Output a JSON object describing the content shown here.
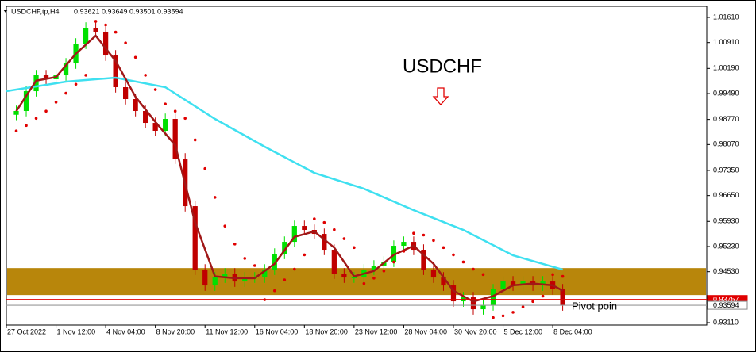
{
  "chart_data": {
    "type": "candlestick",
    "header": {
      "symbol": "USDCHF,tp,H4",
      "ohlc": [
        0.93621,
        0.93649,
        0.93501,
        0.93594
      ]
    },
    "title": "USDCHF",
    "xlim": [
      -1,
      69.5
    ],
    "ylim": [
      0.93044,
      1.01919
    ],
    "xticks": [
      {
        "value": -1,
        "label": "27 Oct 2022"
      },
      {
        "value": 4,
        "label": "1 Nov 12:00"
      },
      {
        "value": 9,
        "label": "4 Nov 04:00"
      },
      {
        "value": 14,
        "label": "8 Nov 20:00"
      },
      {
        "value": 19,
        "label": "11 Nov 12:00"
      },
      {
        "value": 24,
        "label": "16 Nov 04:00"
      },
      {
        "value": 29,
        "label": "18 Nov 20:00"
      },
      {
        "value": 34,
        "label": "23 Nov 12:00"
      },
      {
        "value": 39,
        "label": "28 Nov 04:00"
      },
      {
        "value": 44,
        "label": "30 Nov 20:00"
      },
      {
        "value": 49,
        "label": "5 Dec 12:00"
      },
      {
        "value": 54,
        "label": "8 Dec 04:00"
      }
    ],
    "yticks": [
      {
        "value": 1.0161,
        "label": "1.01610"
      },
      {
        "value": 1.0091,
        "label": "1.00910"
      },
      {
        "value": 1.0019,
        "label": "1.00190"
      },
      {
        "value": 0.9949,
        "label": "0.99490"
      },
      {
        "value": 0.9877,
        "label": "0.98770"
      },
      {
        "value": 0.9807,
        "label": "0.98070"
      },
      {
        "value": 0.9735,
        "label": "0.97350"
      },
      {
        "value": 0.9665,
        "label": "0.96650"
      },
      {
        "value": 0.9593,
        "label": "0.95930"
      },
      {
        "value": 0.9523,
        "label": "0.95230"
      },
      {
        "value": 0.9453,
        "label": "0.94530"
      },
      {
        "value": 0.9311,
        "label": "0.93110"
      }
    ],
    "up_color": "#00e000",
    "down_color": "#c00000",
    "candles": {
      "open": [
        0.989,
        0.99005,
        0.99556,
        0.99998,
        0.99888,
        0.99998,
        1.00329,
        1.00881,
        1.01323,
        1.01213,
        1.0055,
        0.99667,
        0.99336,
        0.99005,
        0.98673,
        0.98453,
        0.98784,
        0.9768,
        0.96355,
        0.94588,
        0.94147,
        0.94368,
        0.94478,
        0.94257,
        0.94368,
        0.94368,
        0.94588,
        0.9503,
        0.95361,
        0.95803,
        0.95693,
        0.95582,
        0.95141,
        0.94478,
        0.94368,
        0.94368,
        0.94588,
        0.94699,
        0.94809,
        0.95251,
        0.95361,
        0.95141,
        0.94588,
        0.94368,
        0.94147,
        0.93705,
        0.93816,
        0.93484,
        0.93595,
        0.94037,
        0.94257,
        0.94147,
        0.94257,
        0.94147,
        0.94257,
        0.94037
      ],
      "high": [
        0.99155,
        0.99706,
        1.00148,
        1.00148,
        1.00148,
        1.00479,
        1.01031,
        1.01473,
        1.01473,
        1.01363,
        1.007,
        0.99817,
        0.99486,
        0.99155,
        0.98823,
        0.98934,
        0.98934,
        0.9783,
        0.96505,
        0.94738,
        0.94518,
        0.94628,
        0.94628,
        0.94518,
        0.94518,
        0.94738,
        0.9518,
        0.95511,
        0.95953,
        0.95953,
        0.95843,
        0.95732,
        0.95291,
        0.94628,
        0.94518,
        0.94738,
        0.94849,
        0.94959,
        0.95401,
        0.95511,
        0.95511,
        0.95291,
        0.94738,
        0.94518,
        0.94297,
        0.93966,
        0.93966,
        0.93745,
        0.94187,
        0.94407,
        0.94407,
        0.94407,
        0.94407,
        0.94407,
        0.94407,
        0.94187
      ],
      "low": [
        0.9875,
        0.98855,
        0.99406,
        0.99738,
        0.99738,
        0.99848,
        1.00179,
        1.00731,
        1.01063,
        1.004,
        0.99517,
        0.99186,
        0.98855,
        0.98523,
        0.98303,
        0.98303,
        0.9753,
        0.96205,
        0.94438,
        0.93997,
        0.93997,
        0.94218,
        0.94107,
        0.94107,
        0.94218,
        0.94218,
        0.94438,
        0.9488,
        0.95211,
        0.95543,
        0.95432,
        0.94991,
        0.94328,
        0.94218,
        0.94218,
        0.94218,
        0.94438,
        0.94549,
        0.94659,
        0.95101,
        0.94991,
        0.94438,
        0.94218,
        0.93997,
        0.93555,
        0.93555,
        0.93334,
        0.93334,
        0.93445,
        0.93887,
        0.93997,
        0.93997,
        0.93997,
        0.93997,
        0.93887,
        0.93444
      ],
      "close": [
        0.99005,
        0.99556,
        0.99998,
        0.99888,
        0.99998,
        1.00329,
        1.00881,
        1.01323,
        1.01213,
        1.0055,
        0.99667,
        0.99336,
        0.99005,
        0.98673,
        0.98453,
        0.98784,
        0.9768,
        0.96355,
        0.94588,
        0.94147,
        0.94368,
        0.94478,
        0.94257,
        0.94368,
        0.94368,
        0.94588,
        0.9503,
        0.95361,
        0.95803,
        0.95693,
        0.95582,
        0.95141,
        0.94478,
        0.94368,
        0.94368,
        0.94588,
        0.94699,
        0.94809,
        0.95251,
        0.95361,
        0.95141,
        0.94588,
        0.94368,
        0.94147,
        0.93705,
        0.93816,
        0.93484,
        0.93595,
        0.94037,
        0.94257,
        0.94147,
        0.94257,
        0.94147,
        0.94257,
        0.94037,
        0.93594
      ]
    },
    "lines": [
      {
        "color": "#3fe0f0",
        "x": [
          -1,
          5,
          10,
          15,
          20,
          25,
          30,
          35,
          40,
          45,
          50,
          55
        ],
        "values": [
          0.99556,
          0.99822,
          0.99932,
          0.99667,
          0.98784,
          0.98011,
          0.97282,
          0.9684,
          0.96244,
          0.95692,
          0.94986,
          0.94588
        ]
      },
      {
        "color": "#a01818",
        "x": [
          0,
          2,
          4,
          6,
          8,
          10,
          12,
          14,
          16,
          18,
          20,
          22,
          24,
          26,
          28,
          30,
          32,
          34,
          36,
          38,
          40,
          42,
          44,
          46,
          48,
          50,
          52,
          54,
          55
        ],
        "values": [
          0.99,
          0.9985,
          0.9995,
          1.006,
          1.011,
          1.004,
          0.994,
          0.987,
          0.9805,
          0.959,
          0.944,
          0.9435,
          0.9435,
          0.9475,
          0.955,
          0.9565,
          0.952,
          0.944,
          0.9455,
          0.95,
          0.9525,
          0.9475,
          0.94,
          0.937,
          0.9385,
          0.9415,
          0.942,
          0.9415,
          0.94
        ]
      }
    ],
    "dots": {
      "color": "#e00000",
      "values": [
        0.9845,
        0.986,
        0.988,
        0.99,
        0.9925,
        0.995,
        0.9975,
        1.0,
        1.015,
        1.014,
        1.012,
        1.009,
        1.005,
        1.0,
        0.996,
        0.992,
        0.99,
        0.988,
        0.982,
        0.974,
        0.966,
        0.958,
        0.953,
        0.949,
        0.947,
        0.9375,
        0.94,
        0.943,
        0.946,
        0.95,
        0.96,
        0.959,
        0.957,
        0.9545,
        0.952,
        0.942,
        0.9435,
        0.9455,
        0.948,
        0.951,
        0.956,
        0.9555,
        0.954,
        0.952,
        0.95,
        0.948,
        0.946,
        0.9445,
        0.9325,
        0.933,
        0.934,
        0.9355,
        0.937,
        0.9385,
        0.9445,
        0.944
      ]
    },
    "zone": {
      "color": "#b8860b",
      "from": 0.9388,
      "to": 0.9463
    },
    "levels": [
      {
        "value": 0.93757,
        "color": "#e00000"
      },
      {
        "value": 0.93594,
        "color": "#999999",
        "label": "Pivot poin"
      }
    ]
  }
}
